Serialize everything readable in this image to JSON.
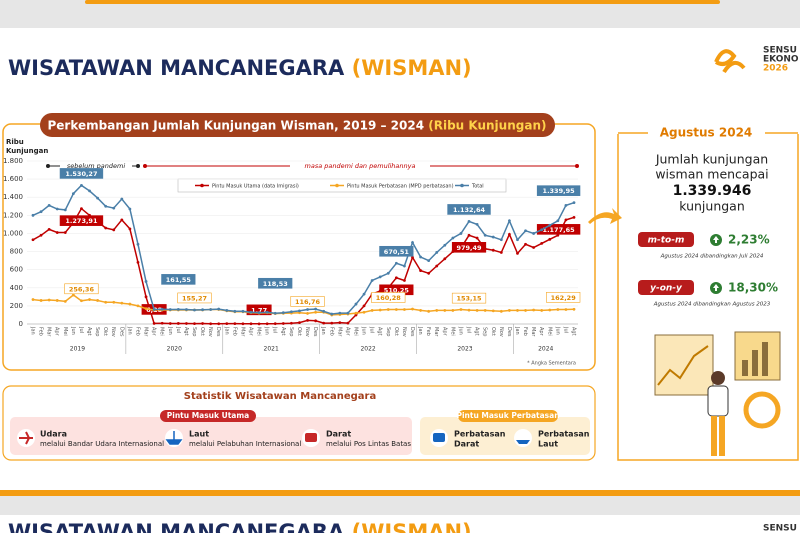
{
  "header": {
    "title": "WISATAWAN MANCANEGARA",
    "title_accent": "(WISMAN)",
    "logo": [
      "SENSU",
      "EKONO",
      "2026"
    ]
  },
  "chart_data": {
    "type": "line",
    "title": "Perkembangan Jumlah Kunjungan Wisman, 2019 – 2024",
    "title_unit": "(Ribu Kunjungan)",
    "y_label": [
      "Ribu",
      "Kunjungan"
    ],
    "annotations": {
      "before": "sebelum pandemi",
      "during": "masa pandemi dan pemulihannya",
      "note": "* Angka Sementara"
    },
    "categories": [
      "Jan",
      "Feb",
      "Mar",
      "Apr",
      "Mei",
      "Jun",
      "Jul",
      "Agt",
      "Sep",
      "Okt",
      "Nov",
      "Des",
      "Jan",
      "Feb",
      "Mar",
      "Apr",
      "Mei",
      "Jun",
      "Jul",
      "Agt",
      "Sep",
      "Okt",
      "Nov",
      "Des",
      "Jan",
      "Feb",
      "Mar",
      "Apr",
      "Mei",
      "Jun",
      "Jul",
      "Agt",
      "Sep",
      "Okt",
      "Nov",
      "Des",
      "Jan",
      "Feb",
      "Mar",
      "Apr",
      "Mei",
      "Jun",
      "Jul",
      "Agt",
      "Sep",
      "Okt",
      "Nov",
      "Des",
      "Jan",
      "Feb",
      "Mar",
      "Apr",
      "Mei",
      "Jun",
      "Jul",
      "Agt",
      "Sep",
      "Okt",
      "Nov",
      "Des",
      "Jan",
      "Feb",
      "Mar",
      "Apr",
      "Mei",
      "Jun",
      "Jul",
      "Agt"
    ],
    "years": [
      "2019",
      "2020",
      "2021",
      "2022",
      "2023",
      "2024"
    ],
    "ylim": [
      0,
      1800
    ],
    "yticks": [
      0,
      200,
      400,
      600,
      800,
      {
        "value": 1000,
        "label": "1.000"
      },
      {
        "value": 1200,
        "label": "1.200"
      },
      {
        "value": 1400,
        "label": "1.400"
      },
      {
        "value": 1600,
        "label": "1.600"
      },
      {
        "value": 1800,
        "label": "1.800"
      }
    ],
    "series": [
      {
        "name": "Pintu Masuk Utama (data Imigrasi)",
        "color": "#c00000",
        "values": [
          930,
          980,
          1045,
          1010,
          1010,
          1120,
          1273.91,
          1200,
          1130,
          1060,
          1040,
          1150,
          1050,
          680,
          300,
          6.28,
          8,
          5,
          6,
          5,
          4,
          5,
          3,
          3,
          4,
          4,
          3,
          3,
          1.77,
          3,
          3.5,
          5,
          8,
          15,
          40,
          35,
          10,
          10,
          15,
          10,
          100,
          200,
          330,
          365,
          400,
          510.25,
          480,
          735,
          590,
          560,
          640,
          720,
          800,
          840,
          979.49,
          950,
          830,
          815,
          790,
          990,
          780,
          880,
          845,
          890,
          935,
          980,
          1150,
          1177.65
        ],
        "value_labels": [
          null,
          null,
          null,
          null,
          null,
          null,
          "1.273,91",
          null,
          null,
          null,
          null,
          null,
          null,
          null,
          null,
          "6,28",
          null,
          null,
          null,
          null,
          null,
          null,
          null,
          null,
          null,
          null,
          null,
          null,
          "1,77",
          null,
          null,
          null,
          null,
          null,
          null,
          null,
          null,
          null,
          null,
          null,
          null,
          null,
          null,
          null,
          null,
          "510,25",
          null,
          null,
          null,
          null,
          null,
          null,
          null,
          null,
          "979,49",
          null,
          null,
          null,
          null,
          null,
          null,
          null,
          null,
          null,
          null,
          null,
          null,
          "1.177,65"
        ]
      },
      {
        "name": "Pintu Masuk Perbatasan (MPD perbatasan)",
        "color": "#f5a623",
        "values": [
          270,
          260,
          265,
          260,
          250,
          320,
          256.36,
          270,
          260,
          240,
          240,
          230,
          220,
          200,
          170,
          155,
          155,
          155,
          155,
          155,
          155.27,
          155,
          160,
          160,
          145,
          135,
          135,
          125,
          120,
          125,
          115,
          118,
          120,
          125,
          116.76,
          130,
          130,
          100,
          105,
          110,
          120,
          130,
          150,
          155,
          160.28,
          160,
          160,
          165,
          150,
          140,
          150,
          150,
          150,
          160,
          153.15,
          150,
          150,
          145,
          140,
          150,
          150,
          150,
          155,
          150,
          155,
          160,
          160,
          162.29
        ],
        "value_labels": [
          null,
          null,
          null,
          null,
          null,
          null,
          "256,36",
          null,
          null,
          null,
          null,
          null,
          null,
          null,
          null,
          null,
          null,
          null,
          null,
          null,
          "155,27",
          null,
          null,
          null,
          null,
          null,
          null,
          null,
          null,
          null,
          null,
          null,
          null,
          null,
          "116,76",
          null,
          null,
          null,
          null,
          null,
          null,
          null,
          null,
          null,
          "160,28",
          null,
          null,
          null,
          null,
          null,
          null,
          null,
          null,
          null,
          "153,15",
          null,
          null,
          null,
          null,
          null,
          null,
          null,
          null,
          null,
          null,
          null,
          null,
          "162,29"
        ]
      },
      {
        "name": "Total",
        "color": "#4a7fa8",
        "values": [
          1200,
          1240,
          1310,
          1270,
          1260,
          1440,
          1530.27,
          1470,
          1390,
          1300,
          1280,
          1380,
          1270,
          880,
          470,
          160,
          163,
          160,
          161.55,
          160,
          155,
          158,
          160,
          165,
          150,
          140,
          140,
          130,
          125,
          130,
          118.53,
          125,
          135,
          145,
          160,
          165,
          140,
          110,
          120,
          120,
          220,
          330,
          480,
          520,
          560,
          670.51,
          640,
          900,
          740,
          700,
          790,
          870,
          950,
          1000,
          1132.64,
          1100,
          980,
          960,
          930,
          1140,
          930,
          1030,
          1000,
          1040,
          1090,
          1140,
          1310,
          1339.95
        ],
        "value_labels": [
          null,
          null,
          null,
          null,
          null,
          null,
          "1.530,27",
          null,
          null,
          null,
          null,
          null,
          null,
          null,
          null,
          null,
          null,
          null,
          "161,55",
          null,
          null,
          null,
          null,
          null,
          null,
          null,
          null,
          null,
          null,
          null,
          "118,53",
          null,
          null,
          null,
          null,
          null,
          null,
          null,
          null,
          null,
          null,
          null,
          null,
          null,
          null,
          "670,51",
          null,
          null,
          null,
          null,
          null,
          null,
          null,
          null,
          "1.132,64",
          null,
          null,
          null,
          null,
          null,
          null,
          null,
          null,
          null,
          null,
          null,
          null,
          "1.339,95"
        ]
      }
    ]
  },
  "summary": {
    "month": "Agustus 2024",
    "lines": [
      "Jumlah kunjungan",
      "wisman mencapai"
    ],
    "total": "1.339.946",
    "unit": "kunjungan",
    "mtm": {
      "label": "m-to-m",
      "value": "2,23%",
      "note": "Agustus 2024 dibandingkan Juli 2024"
    },
    "yoy": {
      "label": "y-on-y",
      "value": "18,30%",
      "note": "Agustus 2024 dibandingkan Agustus 2023"
    }
  },
  "statistics": {
    "title": "Statistik Wisatawan Mancanegara",
    "main": {
      "title": "Pintu Masuk Utama",
      "items": [
        {
          "name": "Udara",
          "desc": "melalui Bandar Udara Internasional"
        },
        {
          "name": "Laut",
          "desc": "melalui Pelabuhan Internasional"
        },
        {
          "name": "Darat",
          "desc": "melalui Pos Lintas Batas"
        }
      ]
    },
    "border": {
      "title": "Pintu Masuk Perbatasan",
      "items": [
        {
          "name": [
            "Perbatasan",
            "Darat"
          ]
        },
        {
          "name": [
            "Perbatasan",
            "Laut"
          ]
        }
      ]
    }
  }
}
